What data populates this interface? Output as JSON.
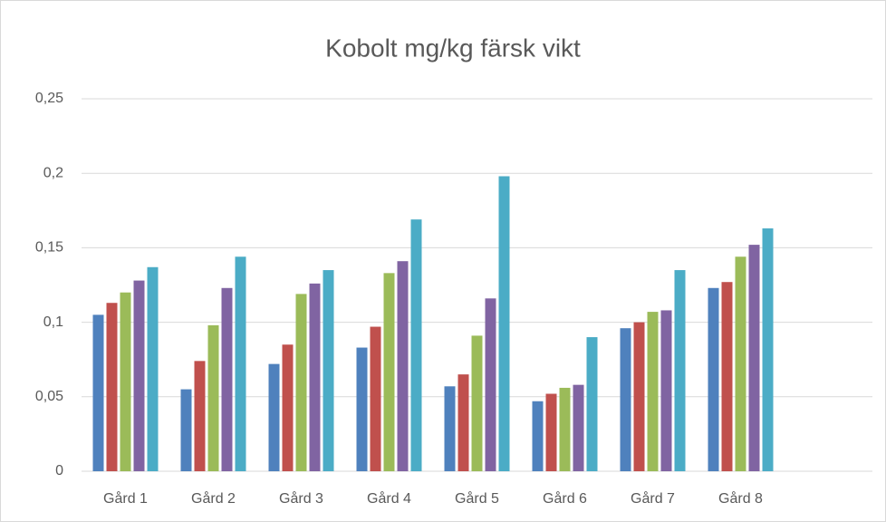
{
  "chart_data": {
    "type": "bar",
    "title": "Kobolt mg/kg färsk vikt",
    "categories": [
      "Gård 1",
      "Gård 2",
      "Gård 3",
      "Gård 4",
      "Gård 5",
      "Gård 6",
      "Gård 7",
      "Gård 8",
      null
    ],
    "series": [
      {
        "color": "#4f81bd",
        "values": [
          0.105,
          0.055,
          0.072,
          0.083,
          0.057,
          0.047,
          0.096,
          0.123,
          null
        ]
      },
      {
        "color": "#c0504d",
        "values": [
          0.113,
          0.074,
          0.085,
          0.097,
          0.065,
          0.052,
          0.1,
          0.127,
          null
        ]
      },
      {
        "color": "#9bbb59",
        "values": [
          0.12,
          0.098,
          0.119,
          0.133,
          0.091,
          0.056,
          0.107,
          0.144,
          null
        ]
      },
      {
        "color": "#8064a2",
        "values": [
          0.128,
          0.123,
          0.126,
          0.141,
          0.116,
          0.058,
          0.108,
          0.152,
          null
        ]
      },
      {
        "color": "#4bacc6",
        "values": [
          0.137,
          0.144,
          0.135,
          0.169,
          0.198,
          0.09,
          0.135,
          0.163,
          null
        ]
      }
    ],
    "ylim": [
      0,
      0.25
    ],
    "yticks": [
      0,
      {
        "value": 0.05,
        "label": "0,05"
      },
      {
        "value": 0.1,
        "label": "0,1"
      },
      {
        "value": 0.15,
        "label": "0,15"
      },
      {
        "value": 0.2,
        "label": "0,2"
      },
      {
        "value": 0.25,
        "label": "0,25"
      }
    ],
    "grid": true
  }
}
